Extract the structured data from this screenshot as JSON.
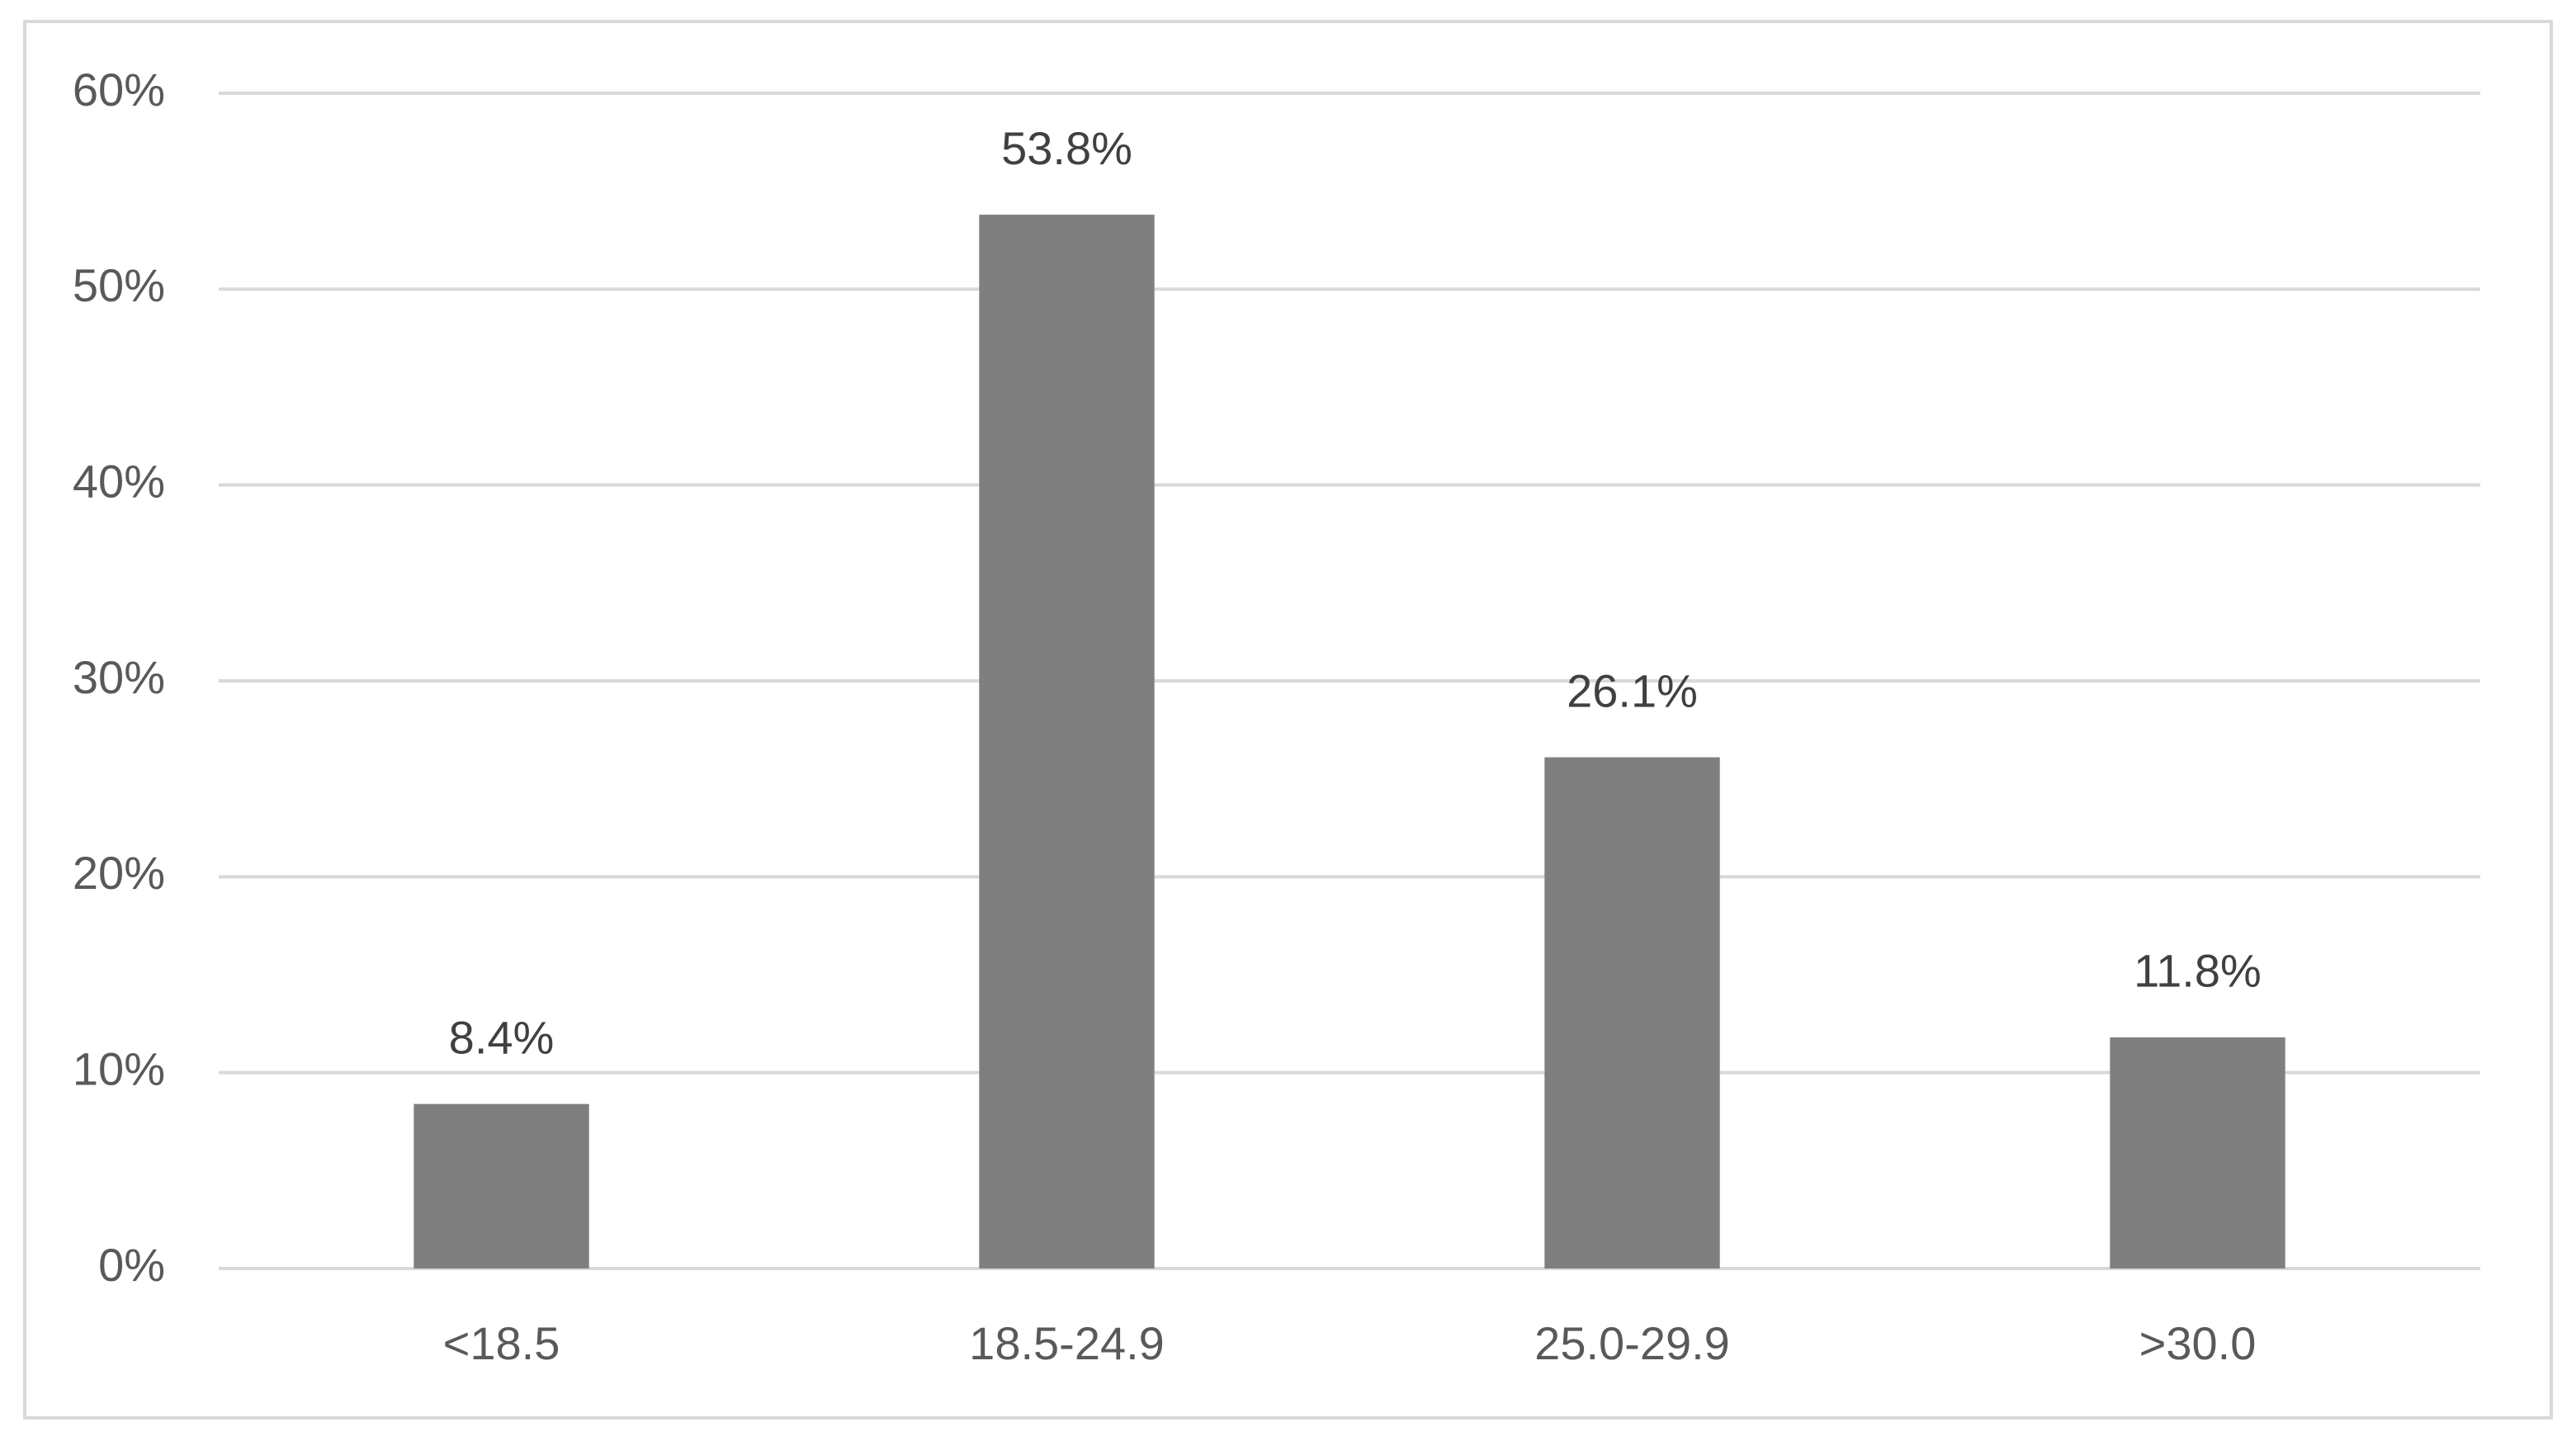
{
  "chart_data": {
    "type": "bar",
    "categories": [
      "<18.5",
      "18.5-24.9",
      "25.0-29.9",
      ">30.0"
    ],
    "values": [
      8.4,
      53.8,
      26.1,
      11.8
    ],
    "value_labels": [
      "8.4%",
      "53.8%",
      "26.1%",
      "11.8%"
    ],
    "color": "#7f7f7f",
    "ylim": [
      0,
      60
    ],
    "yticks": [
      {
        "value": 0,
        "label": "0%"
      },
      {
        "value": 10,
        "label": "10%"
      },
      {
        "value": 20,
        "label": "20%"
      },
      {
        "value": 30,
        "label": "30%"
      },
      {
        "value": 40,
        "label": "40%"
      },
      {
        "value": 50,
        "label": "50%"
      },
      {
        "value": 60,
        "label": "60%"
      }
    ],
    "grid": true
  }
}
